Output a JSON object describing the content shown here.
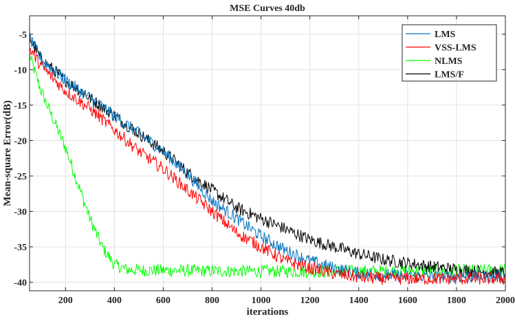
{
  "chart_data": {
    "type": "line",
    "title": "MSE Curves 40db",
    "xlabel": "iterations",
    "ylabel": "Mean-square Error(dB)",
    "xlim": [
      53,
      2000
    ],
    "ylim": [
      -41.2,
      -2.4
    ],
    "xticks": [
      200,
      400,
      600,
      800,
      1000,
      1200,
      1400,
      1600,
      1800,
      2000
    ],
    "yticks": [
      -5,
      -10,
      -15,
      -20,
      -25,
      -30,
      -35,
      -40
    ],
    "grid": true,
    "legend_position": "top-right",
    "series": [
      {
        "name": "LMS",
        "color": "#0072BD",
        "x": [
          53,
          100,
          200,
          300,
          400,
          500,
          600,
          700,
          800,
          900,
          1000,
          1100,
          1200,
          1300,
          1400,
          1500,
          1600,
          1700,
          1800,
          1900,
          2000
        ],
        "y": [
          -5.5,
          -8.5,
          -11.5,
          -14,
          -16.5,
          -19,
          -21.5,
          -24.8,
          -28.5,
          -31,
          -33.5,
          -35.5,
          -37,
          -38,
          -38.7,
          -39,
          -39.1,
          -39.2,
          -39.2,
          -39.2,
          -39.2
        ]
      },
      {
        "name": "VSS-LMS",
        "color": "#FF0000",
        "x": [
          53,
          100,
          200,
          300,
          400,
          500,
          600,
          700,
          800,
          900,
          1000,
          1100,
          1200,
          1300,
          1400,
          1500,
          1600,
          1700,
          1800,
          1900,
          2000
        ],
        "y": [
          -7,
          -9.5,
          -13,
          -15.5,
          -18.5,
          -21.5,
          -24,
          -27,
          -30,
          -33,
          -35,
          -37,
          -38,
          -38.8,
          -39.3,
          -39.5,
          -39.5,
          -39.5,
          -39.5,
          -39.5,
          -39.5
        ]
      },
      {
        "name": "NLMS",
        "color": "#00FF00",
        "x": [
          53,
          100,
          150,
          200,
          250,
          300,
          350,
          400,
          450,
          500,
          800,
          1200,
          1600,
          2000
        ],
        "y": [
          -8,
          -13,
          -17,
          -21,
          -26,
          -31,
          -35,
          -37.5,
          -38.2,
          -38.3,
          -38.4,
          -38.5,
          -38.4,
          -38.3
        ]
      },
      {
        "name": "LMS/F",
        "color": "#000000",
        "x": [
          53,
          100,
          200,
          300,
          400,
          500,
          600,
          700,
          800,
          900,
          1000,
          1100,
          1200,
          1300,
          1400,
          1500,
          1600,
          1700,
          1800,
          1900,
          2000
        ],
        "y": [
          -5.5,
          -8.5,
          -11.5,
          -14,
          -16.5,
          -19,
          -21.5,
          -24.5,
          -27,
          -29.5,
          -31,
          -32.5,
          -34,
          -35,
          -36,
          -36.8,
          -37.3,
          -37.8,
          -38.2,
          -38.5,
          -38.7
        ]
      }
    ]
  }
}
